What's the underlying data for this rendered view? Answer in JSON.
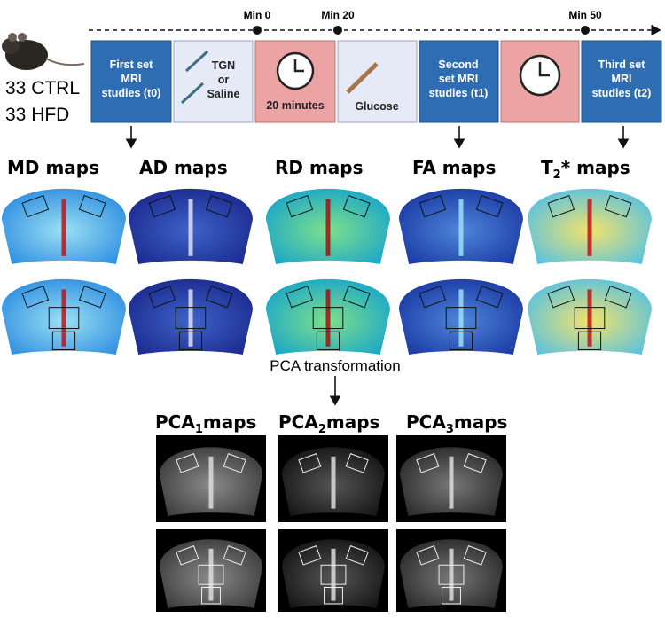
{
  "subjects": [
    "33 CTRL",
    "33 HFD"
  ],
  "timeline": {
    "markers": [
      "Min 0",
      "Min 20",
      "Min 50"
    ]
  },
  "steps": [
    {
      "lines": [
        "First set",
        "MRI",
        "studies (t0)"
      ]
    },
    {
      "lines": [
        "TGN",
        "or",
        "Saline"
      ]
    },
    {
      "lines": [
        "20 minutes"
      ]
    },
    {
      "lines": [
        "Glucose"
      ]
    },
    {
      "lines": [
        "Second",
        "set MRI",
        "studies (t1)"
      ]
    },
    {
      "lines": [
        "Third set",
        "MRI",
        "studies (t2)"
      ]
    }
  ],
  "maps": [
    {
      "main": "MD maps"
    },
    {
      "main": "AD maps"
    },
    {
      "main": "RD maps"
    },
    {
      "main": "FA maps"
    },
    {
      "main": "T",
      "sub": "2",
      "rest": "* maps"
    }
  ],
  "transformation": "PCA transformation",
  "pca_maps": [
    {
      "main": "PCA",
      "sub": "1",
      "rest": "maps"
    },
    {
      "main": "PCA",
      "sub": "2",
      "rest": "maps"
    },
    {
      "main": "PCA",
      "sub": "3",
      "rest": "maps"
    }
  ]
}
